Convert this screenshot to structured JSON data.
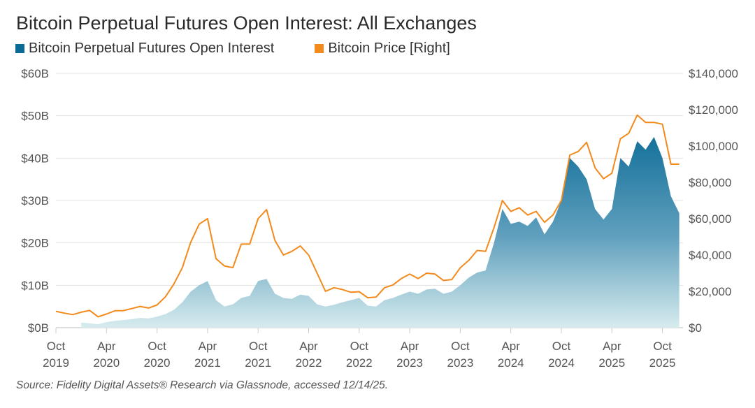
{
  "chart_data": {
    "type": "area+line",
    "title": "Bitcoin Perpetual Futures Open Interest: All Exchanges",
    "source": "Source: Fidelity Digital Assets® Research via Glassnode, accessed 12/14/25.",
    "legend_position": "top-left",
    "grid": true,
    "colors": {
      "open_interest_top": "#0a6a96",
      "open_interest_bottom": "#d6ecee",
      "price": "#f28a1c",
      "grid": "#e3e3e3"
    },
    "y_left": {
      "ylim": [
        0,
        60
      ],
      "ticks": [
        "$0B",
        "$10B",
        "$20B",
        "$30B",
        "$40B",
        "$50B",
        "$60B"
      ]
    },
    "y_right": {
      "ylim": [
        0,
        140000
      ],
      "ticks": [
        "$0",
        "$20,000",
        "$40,000",
        "$60,000",
        "$80,000",
        "$100,000",
        "$120,000",
        "$140,000"
      ]
    },
    "x_ticks": [
      {
        "date": "2019-10",
        "month": "Oct",
        "year": "2019"
      },
      {
        "date": "2020-04",
        "month": "Apr",
        "year": "2020"
      },
      {
        "date": "2020-10",
        "month": "Oct",
        "year": "2020"
      },
      {
        "date": "2021-04",
        "month": "Apr",
        "year": "2021"
      },
      {
        "date": "2021-10",
        "month": "Oct",
        "year": "2021"
      },
      {
        "date": "2022-04",
        "month": "Apr",
        "year": "2022"
      },
      {
        "date": "2022-10",
        "month": "Oct",
        "year": "2022"
      },
      {
        "date": "2023-04",
        "month": "Apr",
        "year": "2023"
      },
      {
        "date": "2023-10",
        "month": "Oct",
        "year": "2023"
      },
      {
        "date": "2024-04",
        "month": "Apr",
        "year": "2024"
      },
      {
        "date": "2024-10",
        "month": "Oct",
        "year": "2024"
      },
      {
        "date": "2025-04",
        "month": "Apr",
        "year": "2025"
      },
      {
        "date": "2025-10",
        "month": "Oct",
        "year": "2025"
      }
    ],
    "series": [
      {
        "name": "Bitcoin Perpetual Futures Open Interest",
        "axis": "left",
        "type": "area",
        "unit": "$B",
        "x": [
          "2020-01",
          "2020-02",
          "2020-03",
          "2020-04",
          "2020-05",
          "2020-06",
          "2020-07",
          "2020-08",
          "2020-09",
          "2020-10",
          "2020-11",
          "2020-12",
          "2021-01",
          "2021-02",
          "2021-03",
          "2021-04",
          "2021-05",
          "2021-06",
          "2021-07",
          "2021-08",
          "2021-09",
          "2021-10",
          "2021-11",
          "2021-12",
          "2022-01",
          "2022-02",
          "2022-03",
          "2022-04",
          "2022-05",
          "2022-06",
          "2022-07",
          "2022-08",
          "2022-09",
          "2022-10",
          "2022-11",
          "2022-12",
          "2023-01",
          "2023-02",
          "2023-03",
          "2023-04",
          "2023-05",
          "2023-06",
          "2023-07",
          "2023-08",
          "2023-09",
          "2023-10",
          "2023-11",
          "2023-12",
          "2024-01",
          "2024-02",
          "2024-03",
          "2024-04",
          "2024-05",
          "2024-06",
          "2024-07",
          "2024-08",
          "2024-09",
          "2024-10",
          "2024-11",
          "2024-12",
          "2025-01",
          "2025-02",
          "2025-03",
          "2025-04",
          "2025-05",
          "2025-06",
          "2025-07",
          "2025-08",
          "2025-09",
          "2025-10",
          "2025-11",
          "2025-12"
        ],
        "values": [
          1.2,
          1.0,
          0.8,
          1.3,
          1.6,
          1.8,
          2.0,
          2.3,
          2.2,
          2.6,
          3.2,
          4.2,
          6.0,
          8.5,
          10.0,
          11.0,
          6.5,
          5.0,
          5.5,
          7.0,
          7.5,
          11.0,
          11.5,
          8.0,
          7.0,
          6.8,
          7.8,
          7.5,
          5.5,
          5.0,
          5.4,
          6.0,
          6.5,
          7.0,
          5.2,
          5.0,
          6.5,
          7.0,
          7.8,
          8.5,
          8.0,
          9.0,
          9.2,
          8.0,
          8.5,
          10.0,
          11.8,
          13.0,
          13.5,
          20.0,
          28.0,
          24.5,
          25.0,
          24.0,
          26.0,
          22.0,
          25.0,
          30.0,
          40.0,
          38.0,
          35.0,
          28.0,
          25.5,
          28.0,
          40.0,
          38.0,
          44.0,
          42.0,
          45.0,
          40.0,
          31.0,
          27.0
        ]
      },
      {
        "name": "Bitcoin Price [Right]",
        "axis": "right",
        "type": "line",
        "unit": "USD",
        "x": [
          "2019-10",
          "2019-11",
          "2019-12",
          "2020-01",
          "2020-02",
          "2020-03",
          "2020-04",
          "2020-05",
          "2020-06",
          "2020-07",
          "2020-08",
          "2020-09",
          "2020-10",
          "2020-11",
          "2020-12",
          "2021-01",
          "2021-02",
          "2021-03",
          "2021-04",
          "2021-05",
          "2021-06",
          "2021-07",
          "2021-08",
          "2021-09",
          "2021-10",
          "2021-11",
          "2021-12",
          "2022-01",
          "2022-02",
          "2022-03",
          "2022-04",
          "2022-05",
          "2022-06",
          "2022-07",
          "2022-08",
          "2022-09",
          "2022-10",
          "2022-11",
          "2022-12",
          "2023-01",
          "2023-02",
          "2023-03",
          "2023-04",
          "2023-05",
          "2023-06",
          "2023-07",
          "2023-08",
          "2023-09",
          "2023-10",
          "2023-11",
          "2023-12",
          "2024-01",
          "2024-02",
          "2024-03",
          "2024-04",
          "2024-05",
          "2024-06",
          "2024-07",
          "2024-08",
          "2024-09",
          "2024-10",
          "2024-11",
          "2024-12",
          "2025-01",
          "2025-02",
          "2025-03",
          "2025-04",
          "2025-05",
          "2025-06",
          "2025-07",
          "2025-08",
          "2025-09",
          "2025-10",
          "2025-11",
          "2025-12"
        ],
        "values": [
          9000,
          8000,
          7200,
          8500,
          9500,
          6000,
          7500,
          9300,
          9400,
          10500,
          11700,
          10800,
          12500,
          17000,
          24000,
          33000,
          47000,
          57000,
          60000,
          38000,
          34000,
          33000,
          46000,
          46000,
          60000,
          65000,
          48000,
          40000,
          42000,
          45000,
          40000,
          30000,
          20000,
          22000,
          21000,
          19500,
          19800,
          16500,
          16800,
          22000,
          23500,
          27000,
          29500,
          27000,
          30000,
          29500,
          26000,
          26500,
          33000,
          37000,
          42500,
          42000,
          55000,
          70000,
          64000,
          66000,
          62000,
          64000,
          58000,
          62000,
          70000,
          95000,
          97000,
          102000,
          88000,
          82000,
          85000,
          104000,
          107000,
          117000,
          113000,
          113000,
          112000,
          90000,
          90000
        ]
      }
    ]
  }
}
